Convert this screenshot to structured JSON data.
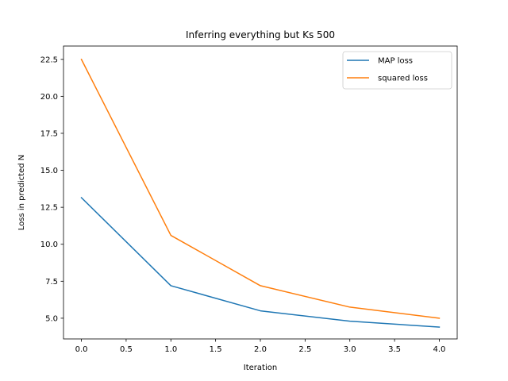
{
  "chart_data": {
    "type": "line",
    "title": "Inferring everything but Ks 500",
    "xlabel": "Iteration",
    "ylabel": "Loss in predicted N",
    "x": [
      0,
      1,
      2,
      3,
      4
    ],
    "xlim": [
      -0.2,
      4.2
    ],
    "ylim": [
      3.6,
      23.4
    ],
    "xticks": [
      0.0,
      0.5,
      1.0,
      1.5,
      2.0,
      2.5,
      3.0,
      3.5,
      4.0
    ],
    "xtick_labels": [
      "0.0",
      "0.5",
      "1.0",
      "1.5",
      "2.0",
      "2.5",
      "3.0",
      "3.5",
      "4.0"
    ],
    "yticks": [
      5.0,
      7.5,
      10.0,
      12.5,
      15.0,
      17.5,
      20.0,
      22.5
    ],
    "ytick_labels": [
      "5.0",
      "7.5",
      "10.0",
      "12.5",
      "15.0",
      "17.5",
      "20.0",
      "22.5"
    ],
    "grid": false,
    "legend_position": "top-right",
    "series": [
      {
        "name": "MAP loss",
        "values": [
          13.15,
          7.2,
          5.5,
          4.8,
          4.4
        ],
        "color": "#1f77b4"
      },
      {
        "name": "squared loss",
        "values": [
          22.5,
          10.6,
          7.2,
          5.75,
          5.0
        ],
        "color": "#ff7f0e"
      }
    ]
  }
}
